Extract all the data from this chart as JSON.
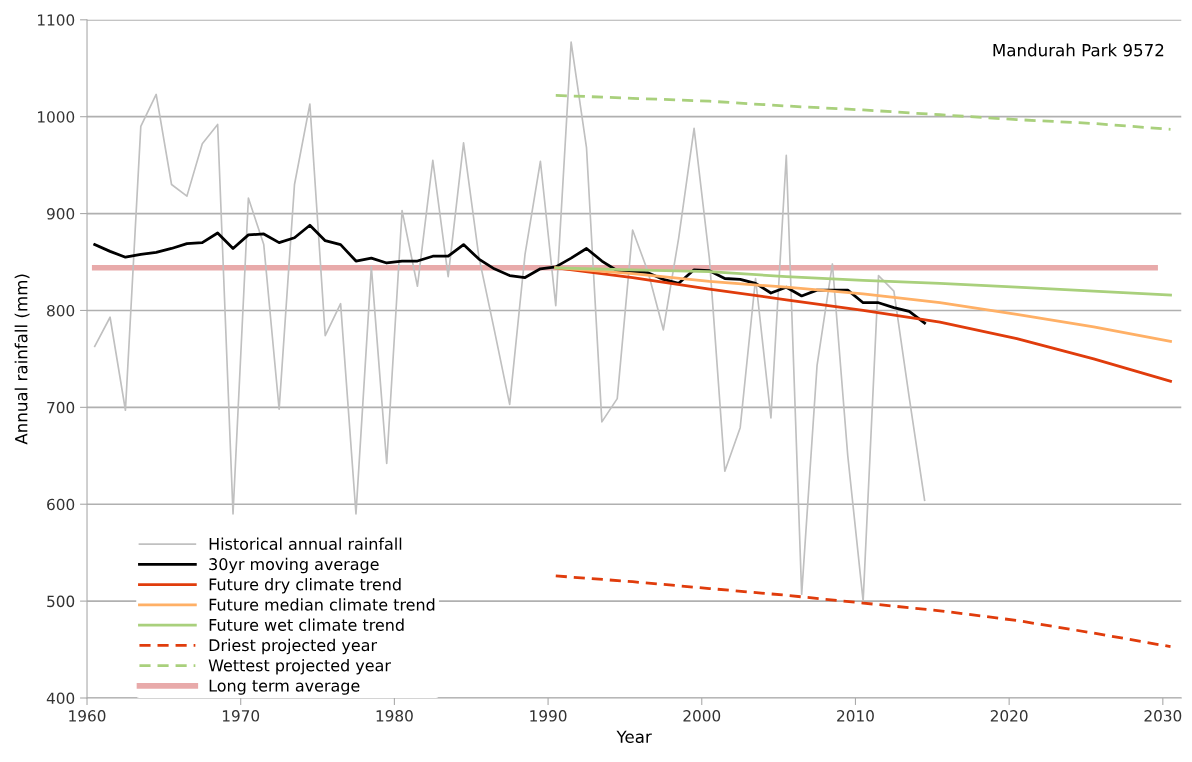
{
  "chart_data": {
    "type": "line",
    "xlabel": "Year",
    "ylabel": "Annual rainfall (mm)",
    "annotations": [
      "Mandurah Park 9572"
    ],
    "xlim": [
      1960,
      2031.2
    ],
    "xticks": [
      1960,
      1970,
      1980,
      1990,
      2000,
      2010,
      2020,
      2030
    ],
    "ylim": [
      400,
      1100
    ],
    "yticks": [
      400,
      500,
      600,
      700,
      800,
      900,
      1000,
      1100
    ],
    "grid": "y",
    "legend": "bottom left",
    "marker": "none",
    "series": [
      {
        "name": "Historical annual rainfall",
        "color": "#c0c0c0",
        "line_style": "solid",
        "x": [
          1960.5,
          1961.5,
          1962.5,
          1963.5,
          1964.5,
          1965.5,
          1966.5,
          1967.5,
          1968.5,
          1969.5,
          1970.5,
          1971.5,
          1972.5,
          1973.5,
          1974.5,
          1975.5,
          1976.5,
          1977.5,
          1978.5,
          1979.5,
          1980.5,
          1981.5,
          1982.5,
          1983.5,
          1984.5,
          1985.5,
          1986.5,
          1987.5,
          1988.5,
          1989.5,
          1990.5,
          1991.5,
          1992.5,
          1993.5,
          1994.5,
          1995.5,
          1996.5,
          1997.5,
          1998.5,
          1999.5,
          2000.5,
          2001.5,
          2002.5,
          2003.5,
          2004.5,
          2005.5,
          2006.5,
          2007.5,
          2008.5,
          2009.5,
          2010.5,
          2011.5,
          2012.5,
          2013.5,
          2014.5
        ],
        "values": [
          763,
          793,
          697,
          990,
          1023,
          930,
          918,
          972,
          992,
          590,
          916,
          868,
          698,
          930,
          1013,
          774,
          807,
          590,
          845,
          642,
          903,
          825,
          955,
          835,
          973,
          855,
          780,
          703,
          858,
          954,
          805,
          1077,
          968,
          685,
          709,
          883,
          840,
          780,
          875,
          988,
          853,
          634,
          679,
          833,
          689,
          960,
          507,
          743,
          848,
          650,
          500,
          836,
          820,
          710,
          604
        ]
      },
      {
        "name": "30yr moving average",
        "color": "#000000",
        "line_style": "solid",
        "x": [
          1960.5,
          1961.5,
          1962.5,
          1963.5,
          1964.5,
          1965.5,
          1966.5,
          1967.5,
          1968.5,
          1969.5,
          1970.5,
          1971.5,
          1972.5,
          1973.5,
          1974.5,
          1975.5,
          1976.5,
          1977.5,
          1978.5,
          1979.5,
          1980.5,
          1981.5,
          1982.5,
          1983.5,
          1984.5,
          1985.5,
          1986.5,
          1987.5,
          1988.5,
          1989.5,
          1990.5,
          1991.5,
          1992.5,
          1993.5,
          1994.5,
          1995.5,
          1996.5,
          1997.5,
          1998.5,
          1999.5,
          2000.5,
          2001.5,
          2002.5,
          2003.5,
          2004.5,
          2005.5,
          2006.5,
          2007.5,
          2008.5,
          2009.5,
          2010.5,
          2011.5,
          2012.5,
          2013.5,
          2014.5
        ],
        "values": [
          868,
          861,
          855,
          858,
          860,
          864,
          869,
          870,
          880,
          864,
          878,
          879,
          870,
          875,
          888,
          872,
          868,
          851,
          854,
          849,
          851,
          851,
          856,
          856,
          868,
          853,
          843,
          836,
          834,
          843,
          845,
          854,
          864,
          851,
          841,
          840,
          839,
          832,
          828,
          842,
          841,
          833,
          832,
          828,
          818,
          824,
          815,
          821,
          821,
          821,
          808,
          808,
          803,
          799,
          787
        ]
      },
      {
        "name": "Future dry climate trend",
        "color": "#e03c0c",
        "line_style": "solid",
        "x": [
          1990.5,
          1995.5,
          2000.5,
          2005.5,
          2010.5,
          2015.5,
          2020.5,
          2025.5,
          2030.5
        ],
        "values": [
          844,
          834,
          822,
          811,
          800,
          788,
          771,
          750,
          727
        ]
      },
      {
        "name": "Future median climate trend",
        "color": "#ffb066",
        "line_style": "solid",
        "x": [
          1990.5,
          1995.5,
          2000.5,
          2005.5,
          2010.5,
          2015.5,
          2020.5,
          2025.5,
          2030.5
        ],
        "values": [
          844,
          838,
          830,
          824,
          817,
          808,
          796,
          783,
          768
        ]
      },
      {
        "name": "Future wet climate trend",
        "color": "#a9d07c",
        "line_style": "solid",
        "x": [
          1990.5,
          1995.5,
          2000.5,
          2005.5,
          2010.5,
          2015.5,
          2020.5,
          2025.5,
          2030.5
        ],
        "values": [
          844,
          842,
          840,
          835,
          831,
          828,
          824,
          820,
          816
        ]
      },
      {
        "name": "Driest projected year",
        "color": "#e03c0c",
        "line_style": "dashed",
        "x": [
          1990.5,
          1995.5,
          2000.5,
          2005.5,
          2010.5,
          2015.5,
          2020.5,
          2025.5,
          2030.5
        ],
        "values": [
          526,
          520,
          513,
          506,
          498,
          490,
          480,
          467,
          453
        ]
      },
      {
        "name": "Wettest projected year",
        "color": "#a9d07c",
        "line_style": "dashed",
        "x": [
          1990.5,
          1995.5,
          2000.5,
          2005.5,
          2010.5,
          2015.5,
          2020.5,
          2025.5,
          2030.5
        ],
        "values": [
          1022,
          1019,
          1016,
          1011,
          1007,
          1002,
          997,
          993,
          987
        ]
      },
      {
        "name": "Long term average",
        "color": "#e8aaaa",
        "line_style": "solid",
        "x": [
          1960.5,
          2029.5
        ],
        "values": [
          844,
          844
        ]
      }
    ]
  }
}
